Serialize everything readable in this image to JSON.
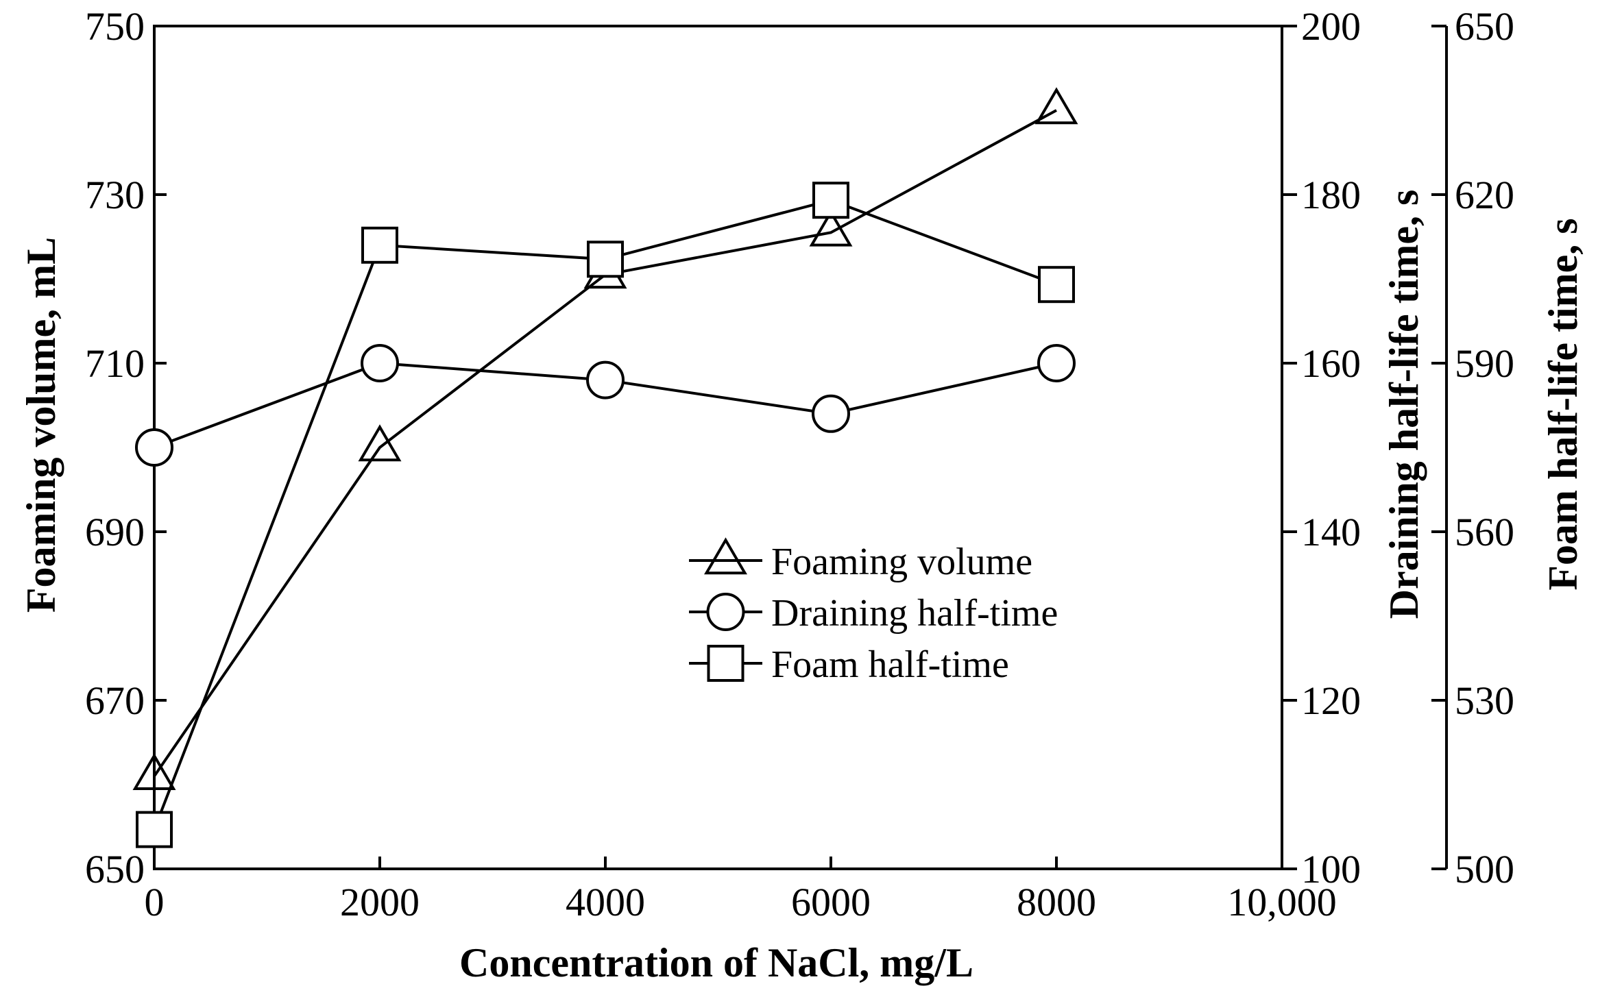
{
  "chart_data": {
    "type": "line",
    "title": "",
    "xlabel": "Concentration of NaCl, mg/L",
    "x": [
      0,
      2000,
      4000,
      6000,
      8000
    ],
    "xlim": [
      0,
      10000
    ],
    "x_ticks": [
      0,
      2000,
      4000,
      6000,
      8000,
      10000
    ],
    "x_tick_labels": [
      "0",
      "2000",
      "4000",
      "6000",
      "8000",
      "10,000"
    ],
    "axes": [
      {
        "id": "y1",
        "label": "Foaming volume, mL",
        "position": "left",
        "lim": [
          650,
          750
        ],
        "ticks": [
          650,
          670,
          690,
          710,
          730,
          750
        ]
      },
      {
        "id": "y2",
        "label": "Draining half-life time, s",
        "position": "right",
        "lim": [
          100,
          200
        ],
        "ticks": [
          100,
          120,
          140,
          160,
          180,
          200
        ]
      },
      {
        "id": "y3",
        "label": "Foam half-life time, s",
        "position": "right-outer",
        "lim": [
          500,
          650
        ],
        "ticks": [
          500,
          530,
          560,
          590,
          620,
          650
        ]
      }
    ],
    "series": [
      {
        "name": "Foaming volume",
        "axis": "y1",
        "marker": "triangle",
        "values": [
          661,
          700,
          720.5,
          725.5,
          740
        ]
      },
      {
        "name": "Draining half-time",
        "axis": "y2",
        "marker": "circle",
        "values": [
          150,
          160,
          158,
          154,
          160
        ]
      },
      {
        "name": "Foam half-time",
        "axis": "y3",
        "marker": "square",
        "values": [
          507,
          611,
          608.5,
          619,
          604
        ]
      }
    ],
    "legend": {
      "placement": "center-right inside plot"
    },
    "grid": false,
    "colors": {
      "line": "#000000",
      "background": "#ffffff"
    }
  }
}
